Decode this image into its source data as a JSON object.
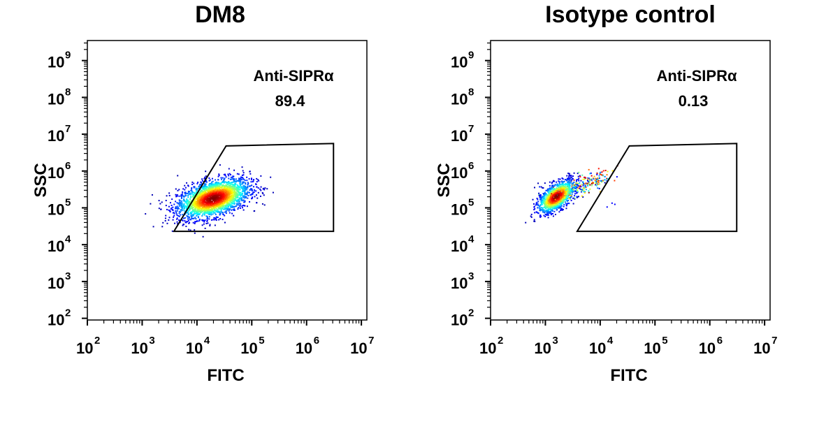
{
  "chart_data": [
    {
      "type": "scatter",
      "title": "DM8",
      "xlabel": "FITC",
      "ylabel": "SSC",
      "xscale": "log",
      "yscale": "log",
      "xlim": [
        100,
        12600000
      ],
      "ylim": [
        90,
        3500000000
      ],
      "xticks": [
        "10^2",
        "10^3",
        "10^4",
        "10^5",
        "10^6",
        "10^7"
      ],
      "yticks": [
        "10^2",
        "10^3",
        "10^4",
        "10^5",
        "10^6",
        "10^7",
        "10^8",
        "10^9"
      ],
      "gate": {
        "label": "Anti-SIPRα",
        "value": "89.4",
        "polygon": [
          [
            3800,
            23000
          ],
          [
            34000,
            4800000
          ],
          [
            3100000,
            5600000
          ],
          [
            3100000,
            23000
          ]
        ]
      },
      "population": {
        "center": [
          20000,
          180000
        ],
        "log_sd": [
          0.33,
          0.27
        ],
        "correlation": 0.45,
        "events": 2600,
        "coloring": "density (jet)"
      },
      "grid": false
    },
    {
      "type": "scatter",
      "title": "Isotype control",
      "xlabel": "FITC",
      "ylabel": "SSC",
      "xscale": "log",
      "yscale": "log",
      "xlim": [
        100,
        12600000
      ],
      "ylim": [
        90,
        3500000000
      ],
      "xticks": [
        "10^2",
        "10^3",
        "10^4",
        "10^5",
        "10^6",
        "10^7"
      ],
      "yticks": [
        "10^2",
        "10^3",
        "10^4",
        "10^5",
        "10^6",
        "10^7",
        "10^8",
        "10^9"
      ],
      "gate": {
        "label": "Anti-SIPRα",
        "value": "0.13",
        "polygon": [
          [
            3800,
            23000
          ],
          [
            34000,
            4800000
          ],
          [
            3100000,
            5600000
          ],
          [
            3100000,
            23000
          ]
        ]
      },
      "population": {
        "center": [
          1600,
          200000
        ],
        "log_sd": [
          0.17,
          0.22
        ],
        "correlation": 0.6,
        "events": 1500,
        "coloring": "density (jet)"
      },
      "grid": false
    }
  ]
}
